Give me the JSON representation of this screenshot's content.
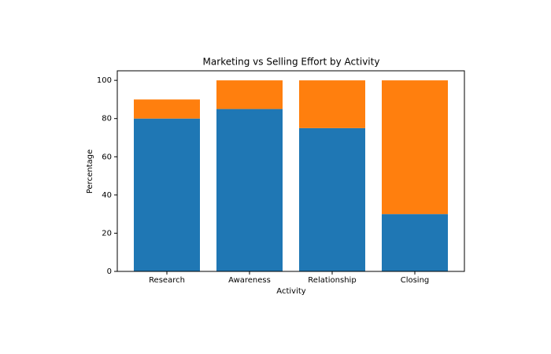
{
  "chart_data": {
    "type": "stacked-bar",
    "title": "Marketing vs Selling Effort by Activity",
    "x_label": "Activity",
    "y_label": "Percentage",
    "categories": [
      "Research",
      "Awareness",
      "Relationship",
      "Closing"
    ],
    "series": [
      {
        "color": "#1f77b4",
        "values": [
          80,
          85,
          75,
          30
        ]
      },
      {
        "color": "#ff7f0e",
        "values": [
          10,
          15,
          25,
          70
        ]
      }
    ],
    "ylim": [
      0,
      105
    ],
    "yticks": [
      0,
      20,
      40,
      60,
      80,
      100
    ]
  }
}
